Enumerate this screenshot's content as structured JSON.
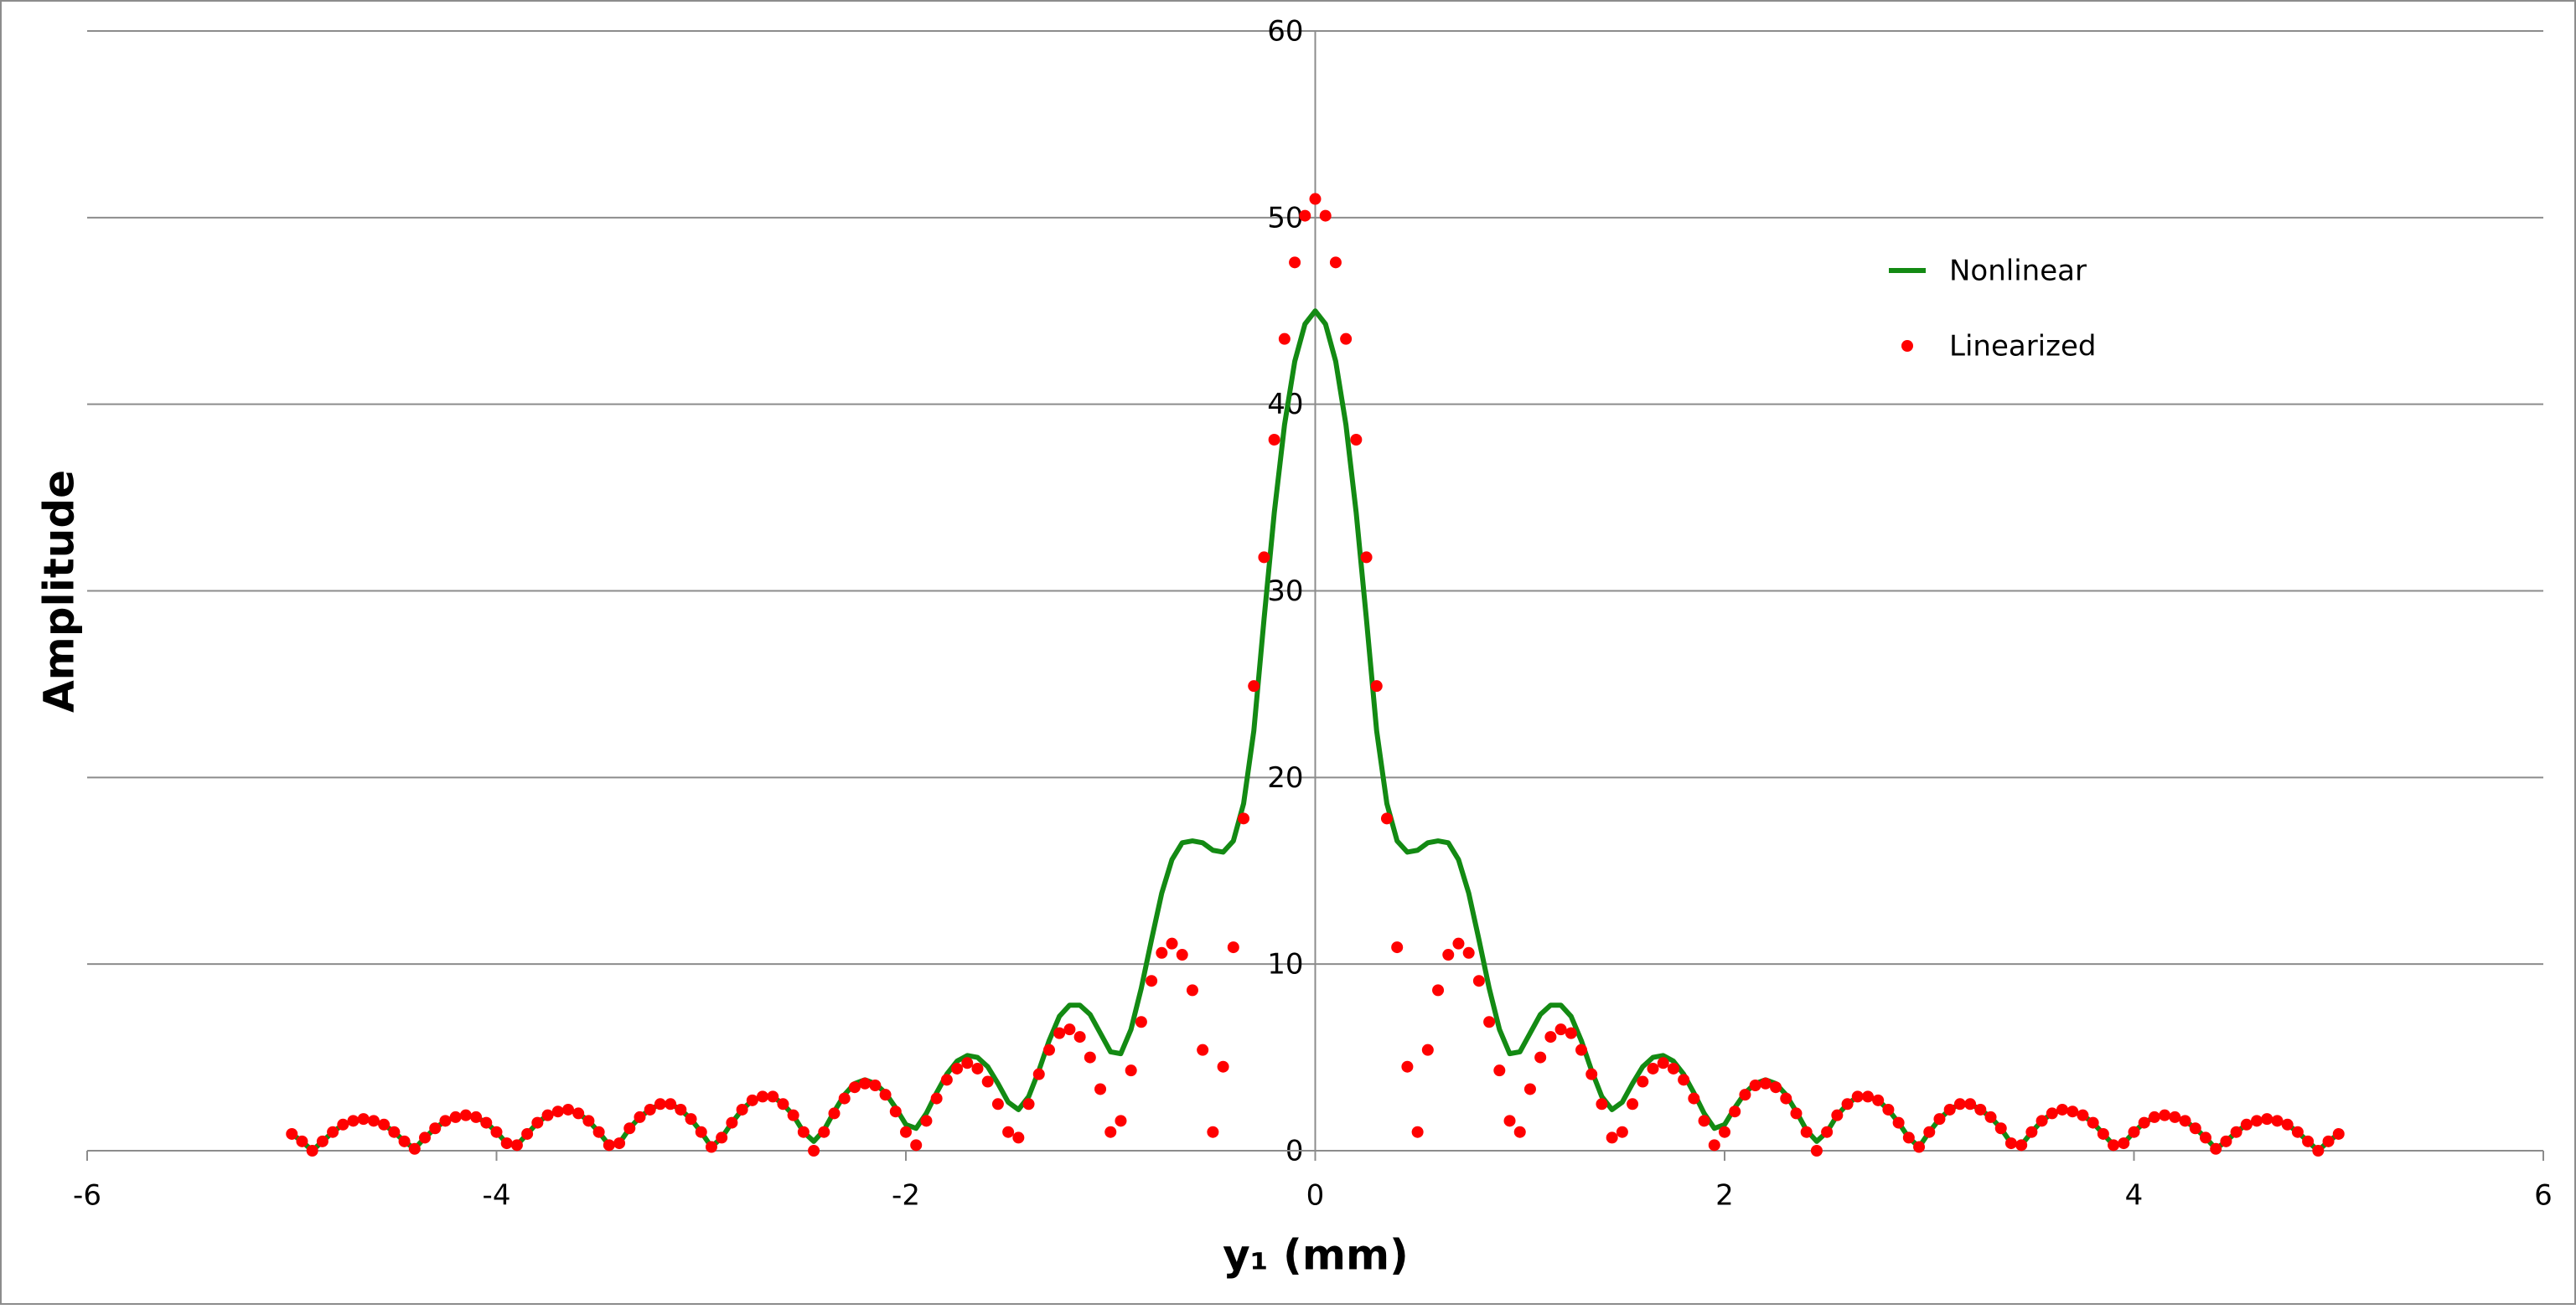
{
  "chart_data": {
    "type": "line-scatter",
    "x_label": "y₁ (mm)",
    "y_label": "Amplitude",
    "xlim": [
      -6,
      6
    ],
    "xticks": [
      -6,
      -4,
      -2,
      0,
      2,
      4,
      6
    ],
    "ylim": [
      0,
      60
    ],
    "yticks": [
      0,
      10,
      20,
      30,
      40,
      50,
      60
    ],
    "grid": true,
    "legend": "upper right",
    "x": [
      -5,
      -4.95,
      -4.9,
      -4.85,
      -4.8,
      -4.75,
      -4.7,
      -4.65,
      -4.6,
      -4.55,
      -4.5,
      -4.45,
      -4.4,
      -4.35,
      -4.3,
      -4.25,
      -4.2,
      -4.15,
      -4.1,
      -4.05,
      -4,
      -3.95,
      -3.9,
      -3.85,
      -3.8,
      -3.75,
      -3.7,
      -3.65,
      -3.6,
      -3.55,
      -3.5,
      -3.45,
      -3.4,
      -3.35,
      -3.3,
      -3.25,
      -3.2,
      -3.15,
      -3.1,
      -3.05,
      -3,
      -2.95,
      -2.9,
      -2.85,
      -2.8,
      -2.75,
      -2.7,
      -2.65,
      -2.6,
      -2.55,
      -2.5,
      -2.45,
      -2.4,
      -2.35,
      -2.3,
      -2.25,
      -2.2,
      -2.15,
      -2.1,
      -2.05,
      -2,
      -1.95,
      -1.9,
      -1.85,
      -1.8,
      -1.75,
      -1.7,
      -1.65,
      -1.6,
      -1.55,
      -1.5,
      -1.45,
      -1.4,
      -1.35,
      -1.3,
      -1.25,
      -1.2,
      -1.15,
      -1.1,
      -1.05,
      -1,
      -0.95,
      -0.9,
      -0.85,
      -0.8,
      -0.75,
      -0.7,
      -0.65,
      -0.6,
      -0.55,
      -0.5,
      -0.45,
      -0.4,
      -0.35,
      -0.3,
      -0.25,
      -0.2,
      -0.15,
      -0.1,
      -0.05,
      0,
      0.05,
      0.1,
      0.15,
      0.2,
      0.25,
      0.3,
      0.35,
      0.4,
      0.45,
      0.5,
      0.55,
      0.6,
      0.65,
      0.7,
      0.75,
      0.8,
      0.85,
      0.9,
      0.95,
      1,
      1.05,
      1.1,
      1.15,
      1.2,
      1.25,
      1.3,
      1.35,
      1.4,
      1.45,
      1.5,
      1.55,
      1.6,
      1.65,
      1.7,
      1.75,
      1.8,
      1.85,
      1.9,
      1.95,
      2,
      2.05,
      2.1,
      2.15,
      2.2,
      2.25,
      2.3,
      2.35,
      2.4,
      2.45,
      2.5,
      2.55,
      2.6,
      2.65,
      2.7,
      2.75,
      2.8,
      2.85,
      2.9,
      2.95,
      3,
      3.05,
      3.1,
      3.15,
      3.2,
      3.25,
      3.3,
      3.35,
      3.4,
      3.45,
      3.5,
      3.55,
      3.6,
      3.65,
      3.7,
      3.75,
      3.8,
      3.85,
      3.9,
      3.95,
      4,
      4.05,
      4.1,
      4.15,
      4.2,
      4.25,
      4.3,
      4.35,
      4.4,
      4.45,
      4.5,
      4.55,
      4.6,
      4.65,
      4.7,
      4.75,
      4.8,
      4.85,
      4.9,
      4.95,
      5
    ],
    "series": [
      {
        "name": "Nonlinear",
        "kind": "line",
        "color": "#138a13",
        "values": [
          0.9,
          0.5,
          0.0,
          0.5,
          1.0,
          1.4,
          1.6,
          1.7,
          1.6,
          1.4,
          1.0,
          0.5,
          0.1,
          0.7,
          1.2,
          1.6,
          1.8,
          1.9,
          1.8,
          1.5,
          1.0,
          0.4,
          0.3,
          0.9,
          1.5,
          1.9,
          2.1,
          2.2,
          2.0,
          1.6,
          1.0,
          0.3,
          0.4,
          1.2,
          1.8,
          2.2,
          2.5,
          2.5,
          2.2,
          1.7,
          1.0,
          0.2,
          0.7,
          1.5,
          2.2,
          2.7,
          2.9,
          2.9,
          2.5,
          1.9,
          1.0,
          0.5,
          1.1,
          2.1,
          3.0,
          3.6,
          3.8,
          3.6,
          3.1,
          2.3,
          1.4,
          1.2,
          2.0,
          3.1,
          4.1,
          4.8,
          5.1,
          5.0,
          4.5,
          3.6,
          2.6,
          2.2,
          2.9,
          4.3,
          5.9,
          7.2,
          7.8,
          7.8,
          7.3,
          6.3,
          5.3,
          5.2,
          6.5,
          8.7,
          11.3,
          13.8,
          15.6,
          16.5,
          16.6,
          16.5,
          16.1,
          16.0,
          16.6,
          18.6,
          22.5,
          28.5,
          34.2,
          38.9,
          42.3,
          44.3,
          45,
          44.3,
          42.3,
          38.9,
          34.2,
          28.5,
          22.5,
          18.6,
          16.6,
          16.0,
          16.1,
          16.5,
          16.6,
          16.5,
          15.6,
          13.8,
          11.3,
          8.7,
          6.5,
          5.2,
          5.3,
          6.3,
          7.3,
          7.8,
          7.8,
          7.2,
          5.9,
          4.3,
          2.9,
          2.2,
          2.6,
          3.6,
          4.5,
          5.0,
          5.1,
          4.8,
          4.1,
          3.1,
          2.0,
          1.2,
          1.4,
          2.3,
          3.1,
          3.6,
          3.8,
          3.6,
          3.0,
          2.1,
          1.1,
          0.5,
          1.0,
          1.9,
          2.5,
          2.9,
          2.9,
          2.7,
          2.2,
          1.5,
          0.7,
          0.2,
          1.0,
          1.7,
          2.2,
          2.5,
          2.5,
          2.2,
          1.8,
          1.2,
          0.4,
          0.3,
          1.0,
          1.6,
          2.0,
          2.2,
          2.1,
          1.9,
          1.5,
          0.9,
          0.3,
          0.4,
          1.0,
          1.5,
          1.8,
          1.9,
          1.8,
          1.6,
          1.2,
          0.7,
          0.1,
          0.5,
          1.0,
          1.4,
          1.6,
          1.7,
          1.6,
          1.4,
          1.0,
          0.5,
          0.0,
          0.5,
          0.9
        ]
      },
      {
        "name": "Linearized",
        "kind": "scatter",
        "color": "#ff0000",
        "values": [
          0.9,
          0.5,
          0.0,
          0.5,
          1.0,
          1.4,
          1.6,
          1.7,
          1.6,
          1.4,
          1.0,
          0.5,
          0.1,
          0.7,
          1.2,
          1.6,
          1.8,
          1.9,
          1.8,
          1.5,
          1.0,
          0.4,
          0.3,
          0.9,
          1.5,
          1.9,
          2.1,
          2.2,
          2.0,
          1.6,
          1.0,
          0.3,
          0.4,
          1.2,
          1.8,
          2.2,
          2.5,
          2.5,
          2.2,
          1.7,
          1.0,
          0.2,
          0.7,
          1.5,
          2.2,
          2.7,
          2.9,
          2.9,
          2.5,
          1.9,
          1.0,
          0.0,
          1.0,
          2.0,
          2.8,
          3.4,
          3.6,
          3.5,
          3.0,
          2.1,
          1.0,
          0.3,
          1.6,
          2.8,
          3.8,
          4.4,
          4.7,
          4.4,
          3.7,
          2.5,
          1.0,
          0.7,
          2.5,
          4.1,
          5.4,
          6.3,
          6.5,
          6.1,
          5.0,
          3.3,
          1.0,
          1.6,
          4.3,
          6.9,
          9.1,
          10.6,
          11.1,
          10.5,
          8.6,
          5.4,
          1.0,
          4.5,
          10.9,
          17.8,
          24.9,
          31.8,
          38.1,
          43.5,
          47.6,
          50.1,
          51.0,
          50.1,
          47.6,
          43.5,
          38.1,
          31.8,
          24.9,
          17.8,
          10.9,
          4.5,
          1.0,
          5.4,
          8.6,
          10.5,
          11.1,
          10.6,
          9.1,
          6.9,
          4.3,
          1.6,
          1.0,
          3.3,
          5.0,
          6.1,
          6.5,
          6.3,
          5.4,
          4.1,
          2.5,
          0.7,
          1.0,
          2.5,
          3.7,
          4.4,
          4.7,
          4.4,
          3.8,
          2.8,
          1.6,
          0.3,
          1.0,
          2.1,
          3.0,
          3.5,
          3.6,
          3.4,
          2.8,
          2.0,
          1.0,
          0.0,
          1.0,
          1.9,
          2.5,
          2.9,
          2.9,
          2.7,
          2.2,
          1.5,
          0.7,
          0.2,
          1.0,
          1.7,
          2.2,
          2.5,
          2.5,
          2.2,
          1.8,
          1.2,
          0.4,
          0.3,
          1.0,
          1.6,
          2.0,
          2.2,
          2.1,
          1.9,
          1.5,
          0.9,
          0.3,
          0.4,
          1.0,
          1.5,
          1.8,
          1.9,
          1.8,
          1.6,
          1.2,
          0.7,
          0.1,
          0.5,
          1.0,
          1.4,
          1.6,
          1.7,
          1.6,
          1.4,
          1.0,
          0.5,
          0.0,
          0.5,
          0.9
        ]
      }
    ]
  }
}
